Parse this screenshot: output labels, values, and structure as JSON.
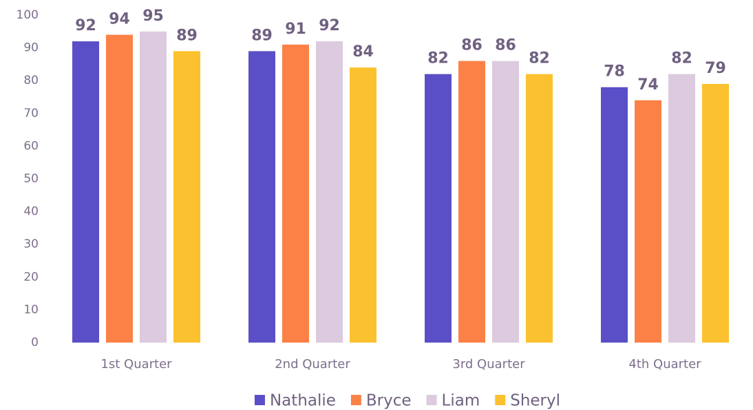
{
  "chart_data": {
    "type": "bar",
    "categories": [
      "1st Quarter",
      "2nd Quarter",
      "3rd Quarter",
      "4th Quarter"
    ],
    "series": [
      {
        "name": "Nathalie",
        "color": "#5a4fc6",
        "values": [
          92,
          89,
          82,
          78
        ]
      },
      {
        "name": "Bryce",
        "color": "#fb8146",
        "values": [
          94,
          91,
          86,
          74
        ]
      },
      {
        "name": "Liam",
        "color": "#dccadf",
        "values": [
          95,
          92,
          86,
          82
        ]
      },
      {
        "name": "Sheryl",
        "color": "#fcc12e",
        "values": [
          89,
          84,
          82,
          79
        ]
      }
    ],
    "ylim": [
      0,
      100
    ],
    "yticks": [
      0,
      10,
      20,
      30,
      40,
      50,
      60,
      70,
      80,
      90,
      100
    ],
    "grid": false,
    "legend": "bottom",
    "data_labels": true
  }
}
